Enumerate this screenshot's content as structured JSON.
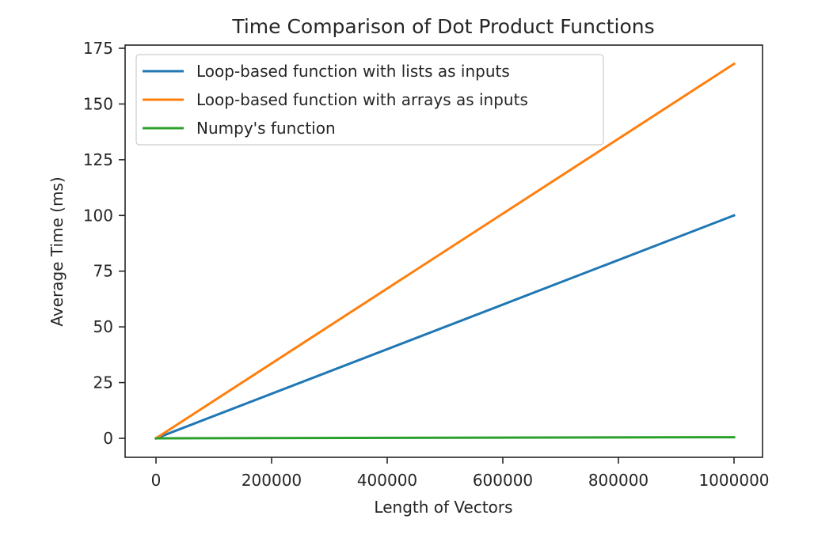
{
  "chart_data": {
    "type": "line",
    "title": "Time Comparison of Dot Product Functions",
    "xlabel": "Length of Vectors",
    "ylabel": "Average Time (ms)",
    "xlim": [
      -50000,
      1050000
    ],
    "ylim": [
      -8.5,
      176
    ],
    "x_ticks": [
      0,
      200000,
      400000,
      600000,
      800000,
      1000000
    ],
    "x_tick_labels": [
      "0",
      "200000",
      "400000",
      "600000",
      "800000",
      "1000000"
    ],
    "y_ticks": [
      0,
      25,
      50,
      75,
      100,
      125,
      150,
      175
    ],
    "y_tick_labels": [
      "0",
      "25",
      "50",
      "75",
      "100",
      "125",
      "150",
      "175"
    ],
    "grid": false,
    "legend_position": "upper left",
    "x": [
      0,
      1000000
    ],
    "series": [
      {
        "name": "Loop-based function with lists as inputs",
        "color": "#1f77b4",
        "values": [
          0,
          100
        ]
      },
      {
        "name": "Loop-based function with arrays as inputs",
        "color": "#ff7f0e",
        "values": [
          0,
          168
        ]
      },
      {
        "name": "Numpy's function",
        "color": "#2ca02c",
        "values": [
          0,
          0.5
        ]
      }
    ]
  }
}
